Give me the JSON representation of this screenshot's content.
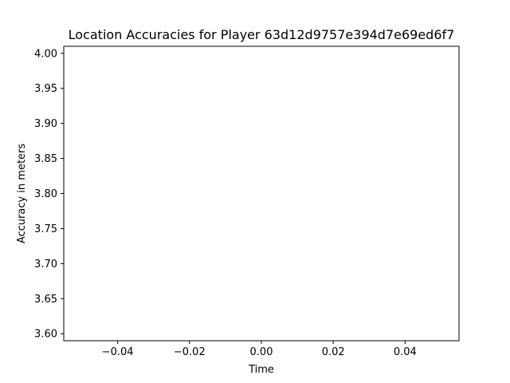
{
  "chart_data": {
    "type": "line",
    "title": "Location Accuracies for Player 63d12d9757e394d7e69ed6f7",
    "xlabel": "Time",
    "ylabel": "Accuracy in meters",
    "xlim": [
      -0.055,
      0.055
    ],
    "ylim": [
      3.59,
      4.01
    ],
    "xticks": [
      -0.04,
      -0.02,
      0.0,
      0.02,
      0.04
    ],
    "xtick_labels": [
      "−0.04",
      "−0.02",
      "0.00",
      "0.02",
      "0.04"
    ],
    "yticks": [
      3.6,
      3.65,
      3.7,
      3.75,
      3.8,
      3.85,
      3.9,
      3.95,
      4.0
    ],
    "ytick_labels": [
      "3.60",
      "3.65",
      "3.70",
      "3.75",
      "3.80",
      "3.85",
      "3.90",
      "3.95",
      "4.00"
    ],
    "grid": false,
    "series": [],
    "colors": {
      "axis": "#000000",
      "background": "#ffffff"
    }
  }
}
